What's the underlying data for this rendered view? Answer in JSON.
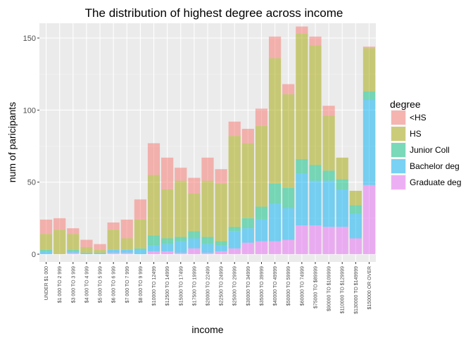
{
  "chart_data": {
    "type": "bar",
    "stacked": true,
    "title": "The distribution of highest degree across income",
    "xlabel": "income",
    "ylabel": "num of paricipants",
    "ylim": [
      0,
      155
    ],
    "yticks": [
      0,
      50,
      100,
      150
    ],
    "grid": true,
    "legend": {
      "title": "degree",
      "placement": "right"
    },
    "categories": [
      "UNDER $1 000",
      "$1 000 TO 2 999",
      "$3 000 TO 3 999",
      "$4 000 TO 4 999",
      "$5 000 TO 5 999",
      "$6 000 TO 6 999",
      "$7 000 TO 7 999",
      "$8 000 TO 9 999",
      "$10000 TO 12499",
      "$12500 TO 14999",
      "$15000 TO 17499",
      "$17500 TO 19999",
      "$20000 TO 22499",
      "$22500 TO 24999",
      "$25000 TO 29999",
      "$30000 TO 34999",
      "$35000 TO 39999",
      "$40000 TO 49999",
      "$50000 TO 59999",
      "$60000 TO 74999",
      "$75000 TO $89999",
      "$90000 TO $109999",
      "$110000 TO $129999",
      "$130000 TO $149999",
      "$150000 OR OVER"
    ],
    "series": [
      {
        "name": "<HS",
        "color": "#F8766D",
        "values": [
          10,
          8,
          4,
          5,
          4,
          5,
          13,
          14,
          22,
          22,
          9,
          11,
          16,
          10,
          10,
          10,
          12,
          15,
          7,
          5,
          6,
          7,
          0,
          0,
          1
        ]
      },
      {
        "name": "HS",
        "color": "#A3A500",
        "values": [
          11,
          17,
          11,
          4,
          2,
          14,
          8,
          20,
          42,
          34,
          39,
          26,
          39,
          40,
          63,
          52,
          56,
          87,
          65,
          87,
          83,
          38,
          15,
          10,
          30
        ]
      },
      {
        "name": "Junior Coll",
        "color": "#00BF7D",
        "values": [
          1,
          0,
          1,
          0,
          0,
          0,
          0,
          1,
          7,
          4,
          3,
          5,
          5,
          3,
          3,
          7,
          9,
          14,
          14,
          10,
          11,
          7,
          7,
          6,
          6
        ]
      },
      {
        "name": "Bachelor deg",
        "color": "#00B0F6",
        "values": [
          2,
          0,
          1,
          1,
          1,
          2,
          2,
          3,
          4,
          5,
          8,
          7,
          6,
          4,
          12,
          10,
          15,
          26,
          22,
          36,
          31,
          32,
          26,
          17,
          59
        ]
      },
      {
        "name": "Graduate deg",
        "color": "#E76BF3",
        "values": [
          0,
          0,
          1,
          0,
          0,
          1,
          1,
          0,
          2,
          2,
          1,
          4,
          1,
          2,
          4,
          8,
          9,
          9,
          10,
          20,
          20,
          19,
          19,
          11,
          48
        ]
      }
    ]
  }
}
